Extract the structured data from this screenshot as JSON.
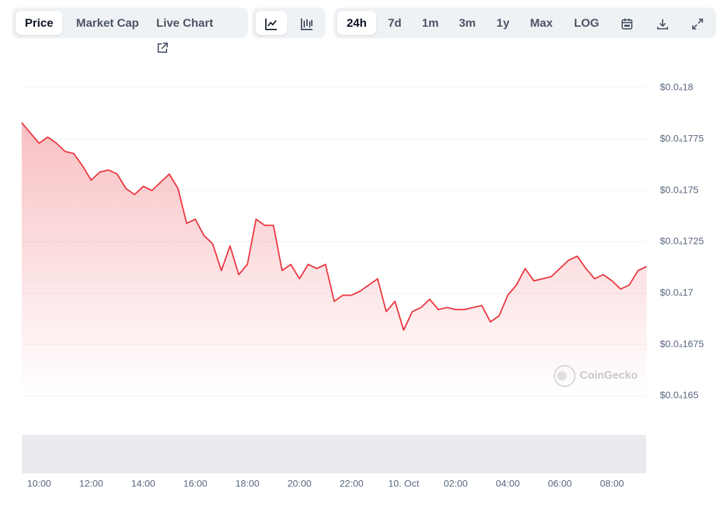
{
  "toolbar": {
    "views": [
      "Price",
      "Market Cap",
      "Live Chart"
    ],
    "ranges": [
      "24h",
      "7d",
      "1m",
      "3m",
      "1y",
      "Max",
      "LOG"
    ]
  },
  "watermark": "CoinGecko",
  "chart_data": {
    "type": "line",
    "categories": [
      null,
      null,
      "10:00",
      null,
      null,
      null,
      null,
      null,
      "12:00",
      null,
      null,
      null,
      null,
      null,
      "14:00",
      null,
      null,
      null,
      null,
      null,
      "16:00",
      null,
      null,
      null,
      null,
      null,
      "18:00",
      null,
      null,
      null,
      null,
      null,
      "20:00",
      null,
      null,
      null,
      null,
      null,
      "22:00",
      null,
      null,
      null,
      null,
      null,
      "10. Oct",
      null,
      null,
      null,
      null,
      null,
      "02:00",
      null,
      null,
      null,
      null,
      null,
      "04:00",
      null,
      null,
      null,
      null,
      null,
      "06:00",
      null,
      null,
      null,
      null,
      null,
      "08:00",
      null,
      null,
      null,
      null
    ],
    "series": [
      {
        "color": "#ea3943",
        "values": [
          1.783e-05,
          1.778e-05,
          1.773e-05,
          1.776e-05,
          1.773e-05,
          1.769e-05,
          1.768e-05,
          1.762e-05,
          1.755e-05,
          1.759e-05,
          1.76e-05,
          1.758e-05,
          1.751e-05,
          1.748e-05,
          1.752e-05,
          1.75e-05,
          1.754e-05,
          1.758e-05,
          1.751e-05,
          1.734e-05,
          1.736e-05,
          1.728e-05,
          1.724e-05,
          1.711e-05,
          1.723e-05,
          1.709e-05,
          1.714e-05,
          1.736e-05,
          1.733e-05,
          1.733e-05,
          1.711e-05,
          1.714e-05,
          1.707e-05,
          1.714e-05,
          1.712e-05,
          1.714e-05,
          1.696e-05,
          1.699e-05,
          1.699e-05,
          1.701e-05,
          1.704e-05,
          1.707e-05,
          1.691e-05,
          1.696e-05,
          1.682e-05,
          1.691e-05,
          1.693e-05,
          1.697e-05,
          1.692e-05,
          1.693e-05,
          1.692e-05,
          1.692e-05,
          1.693e-05,
          1.694e-05,
          1.686e-05,
          1.689e-05,
          1.699e-05,
          1.704e-05,
          1.712e-05,
          1.706e-05,
          1.707e-05,
          1.708e-05,
          1.712e-05,
          1.716e-05,
          1.718e-05,
          1.712e-05,
          1.707e-05,
          1.709e-05,
          1.706e-05,
          1.702e-05,
          1.704e-05,
          1.711e-05,
          1.713e-05
        ]
      }
    ],
    "ylim": [
      1.65e-05,
      1.8e-05
    ],
    "yticks": [
      {
        "value": 1.8e-05,
        "label": "$0.0₄18"
      },
      {
        "value": 1.775e-05,
        "label": "$0.0₄1775"
      },
      {
        "value": 1.75e-05,
        "label": "$0.0₄175"
      },
      {
        "value": 1.725e-05,
        "label": "$0.0₄1725"
      },
      {
        "value": 1.7e-05,
        "label": "$0.0₄17"
      },
      {
        "value": 1.675e-05,
        "label": "$0.0₄1675"
      },
      {
        "value": 1.65e-05,
        "label": "$0.0₄165"
      }
    ],
    "grid": true
  }
}
